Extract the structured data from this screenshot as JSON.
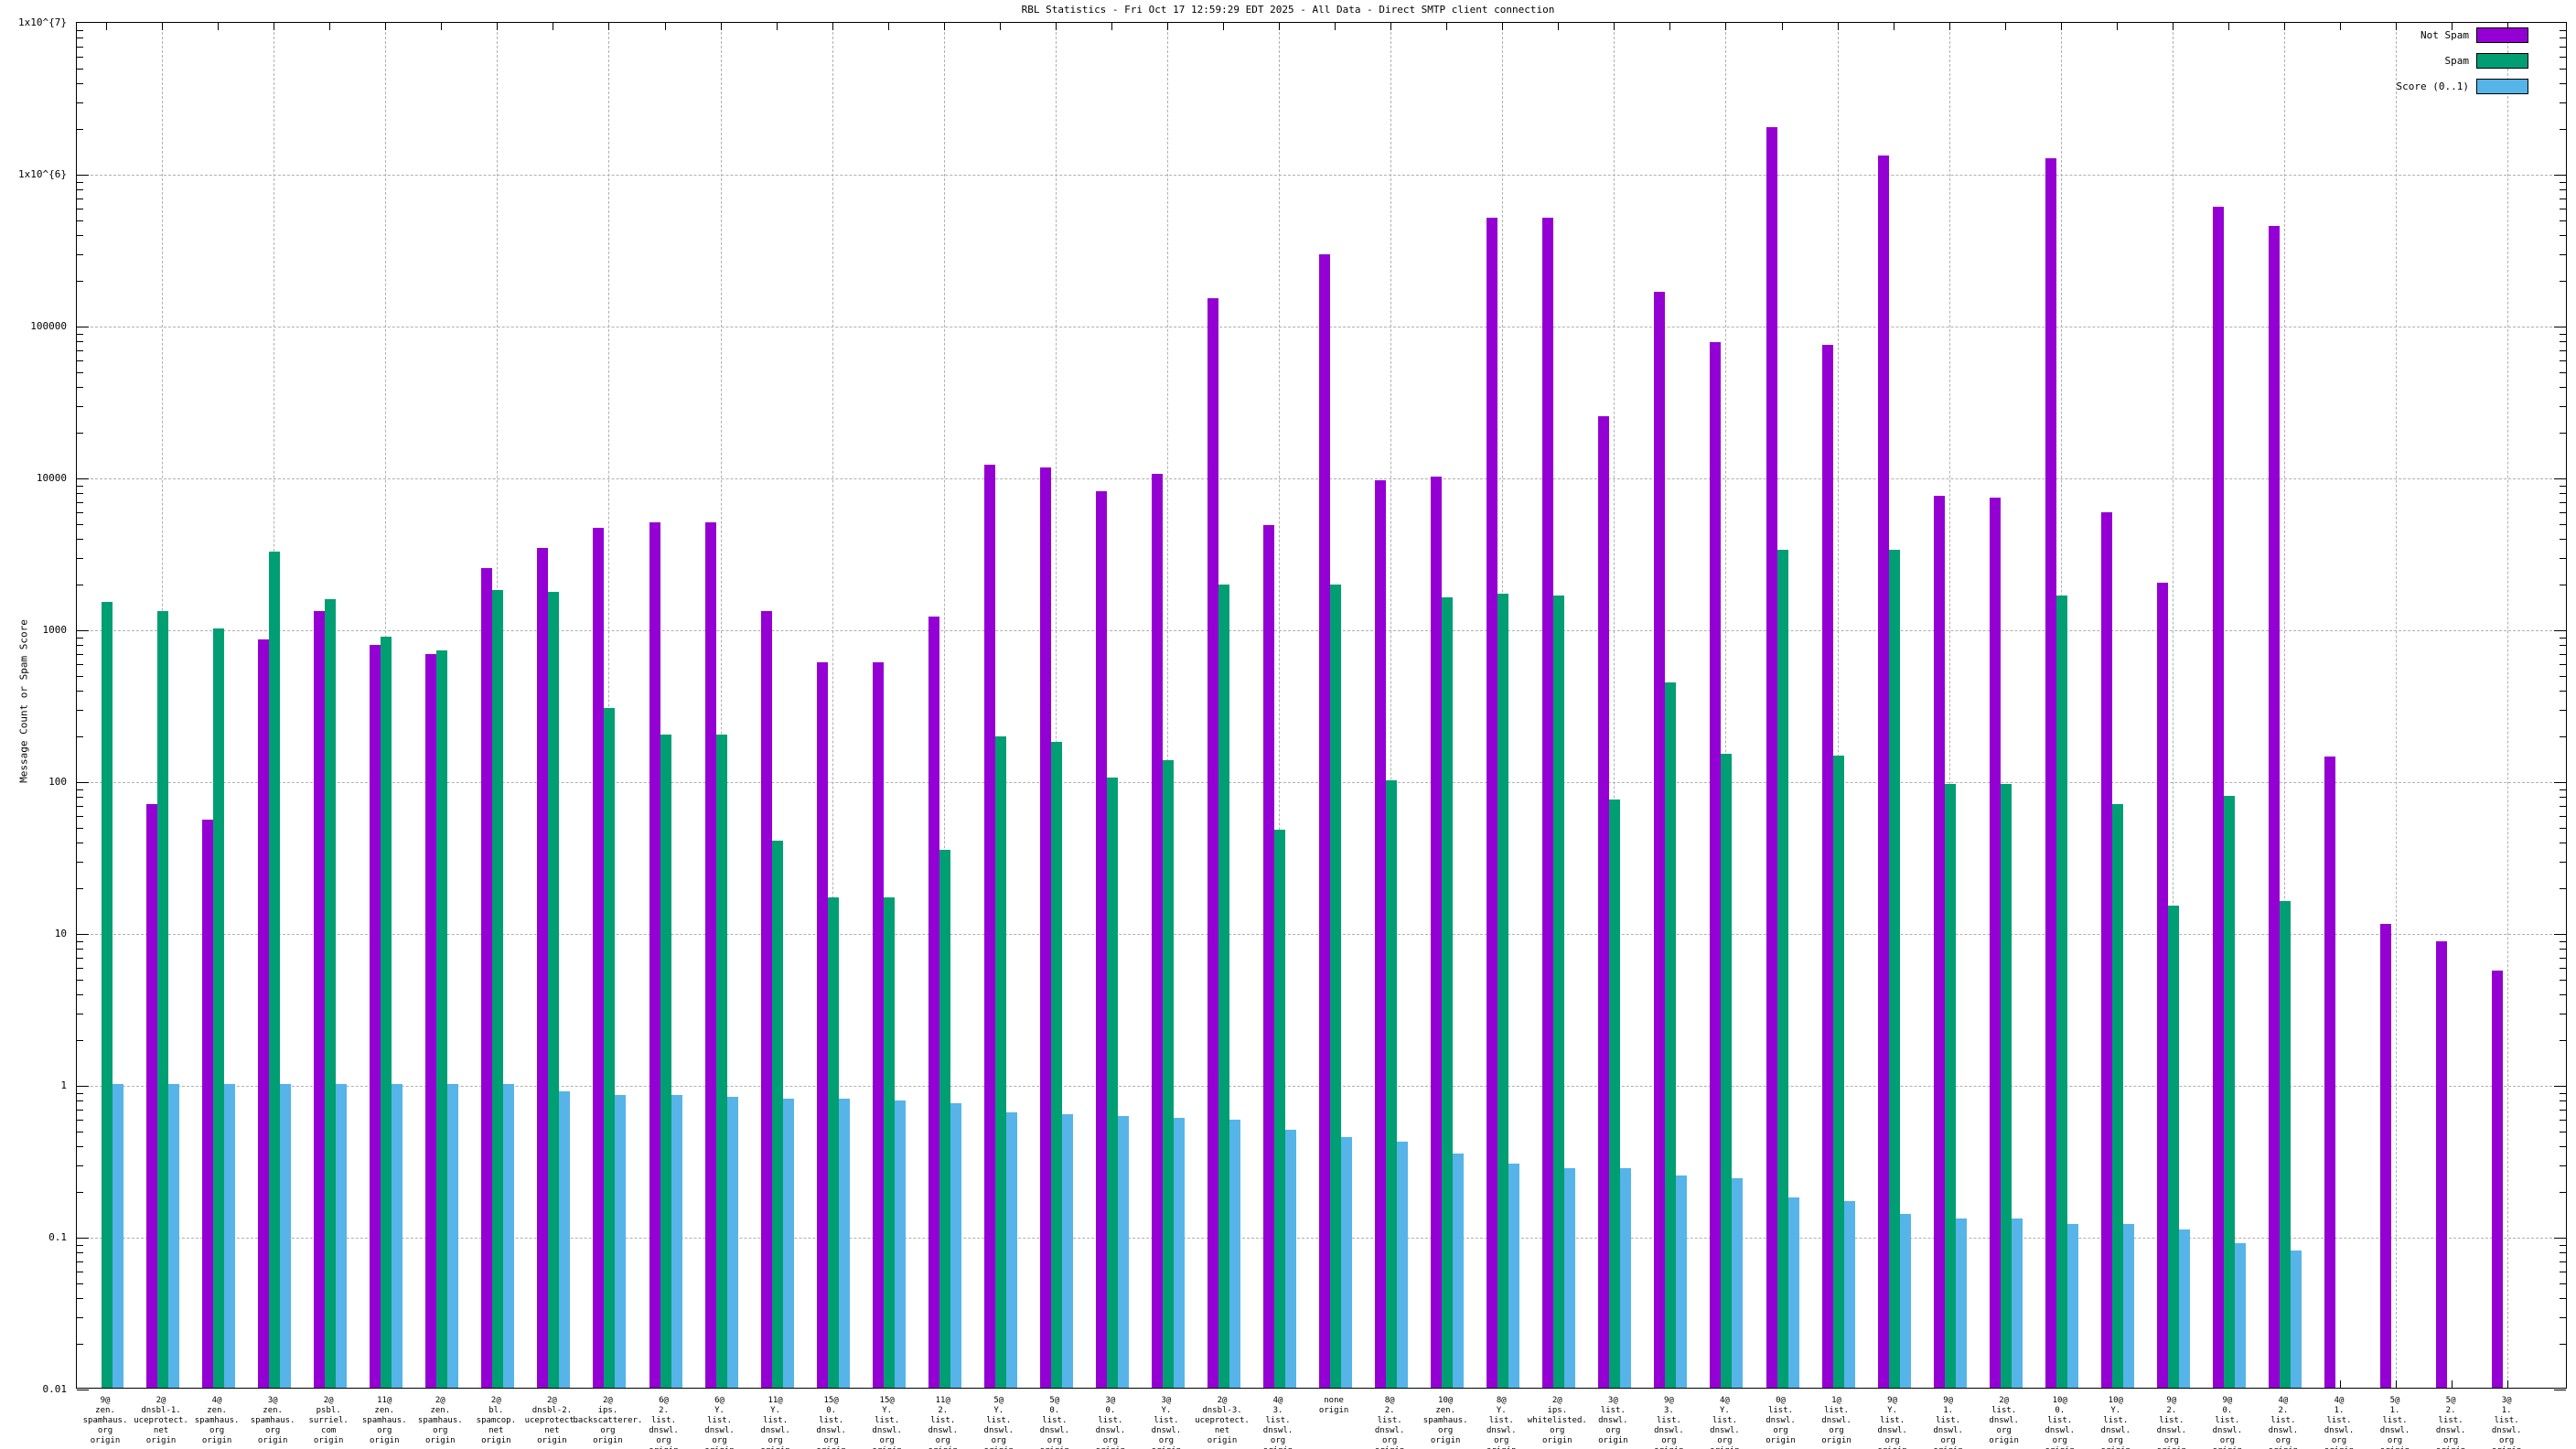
{
  "title": "RBL Statistics - Fri Oct 17 12:59:29 EDT 2025 - All Data - Direct SMTP client connection",
  "y_axis_label": "Message Count or Spam Score",
  "y_tick_labels": [
    "0.01",
    "0.1",
    "1",
    "10",
    "100",
    "1000",
    "10000",
    "100000",
    "1x10^{6}",
    "1x10^{7}"
  ],
  "legend": {
    "not_spam_label": "Not Spam",
    "spam_label": "Spam",
    "score_label": "Score (0..1)"
  },
  "colors": {
    "not_spam": "#9400d3",
    "spam": "#009e73",
    "score": "#56b4e9",
    "grid": "#b0b0b0",
    "border": "#000000"
  },
  "chart_data": {
    "type": "bar",
    "y_scale": "log",
    "ylim": [
      0.01,
      10000000
    ],
    "grid": "on",
    "legend_position": "top-right",
    "title": "RBL Statistics - Fri Oct 17 12:59:29 EDT 2025 - All Data - Direct SMTP client connection",
    "ylabel": "Message Count or Spam Score",
    "series": [
      {
        "name": "Not Spam",
        "color": "#9400d3"
      },
      {
        "name": "Spam",
        "color": "#009e73"
      },
      {
        "name": "Score (0..1)",
        "color": "#56b4e9"
      }
    ],
    "groups": [
      {
        "label_lines": [
          "9@",
          "zen.",
          "spamhaus.",
          "org",
          "origin"
        ],
        "not_spam": null,
        "spam": 1500,
        "score": 1.0
      },
      {
        "label_lines": [
          "2@",
          "dnsbl-1.",
          "uceprotect.",
          "net",
          "origin"
        ],
        "not_spam": 70,
        "spam": 1300,
        "score": 1.0
      },
      {
        "label_lines": [
          "4@",
          "zen.",
          "spamhaus.",
          "org",
          "origin"
        ],
        "not_spam": 55,
        "spam": 1000,
        "score": 1.0
      },
      {
        "label_lines": [
          "3@",
          "zen.",
          "spamhaus.",
          "org",
          "origin"
        ],
        "not_spam": 850,
        "spam": 3200,
        "score": 1.0
      },
      {
        "label_lines": [
          "2@",
          "psbl.",
          "surriel.",
          "com",
          "origin"
        ],
        "not_spam": 1300,
        "spam": 1550,
        "score": 1.0
      },
      {
        "label_lines": [
          "11@",
          "zen.",
          "spamhaus.",
          "org",
          "origin"
        ],
        "not_spam": 780,
        "spam": 880,
        "score": 1.0
      },
      {
        "label_lines": [
          "2@",
          "zen.",
          "spamhaus.",
          "org",
          "origin"
        ],
        "not_spam": 680,
        "spam": 720,
        "score": 1.0
      },
      {
        "label_lines": [
          "2@",
          "bl.",
          "spamcop.",
          "net",
          "origin"
        ],
        "not_spam": 2500,
        "spam": 1800,
        "score": 1.0
      },
      {
        "label_lines": [
          "2@",
          "dnsbl-2.",
          "uceprotect.",
          "net",
          "origin"
        ],
        "not_spam": 3400,
        "spam": 1750,
        "score": 0.9
      },
      {
        "label_lines": [
          "2@",
          "ips.",
          "backscatterer.",
          "org",
          "origin"
        ],
        "not_spam": 4600,
        "spam": 300,
        "score": 0.85
      },
      {
        "label_lines": [
          "6@",
          "2.",
          "list.",
          "dnswl.",
          "org",
          "origin"
        ],
        "not_spam": 5000,
        "spam": 200,
        "score": 0.85
      },
      {
        "label_lines": [
          "6@",
          "Y.",
          "list.",
          "dnswl.",
          "org",
          "origin"
        ],
        "not_spam": 5000,
        "spam": 200,
        "score": 0.82
      },
      {
        "label_lines": [
          "11@",
          "Y.",
          "list.",
          "dnswl.",
          "org",
          "origin"
        ],
        "not_spam": 1300,
        "spam": 40,
        "score": 0.8
      },
      {
        "label_lines": [
          "15@",
          "0.",
          "list.",
          "dnswl.",
          "org",
          "origin"
        ],
        "not_spam": 600,
        "spam": 17,
        "score": 0.8
      },
      {
        "label_lines": [
          "15@",
          "Y.",
          "list.",
          "dnswl.",
          "org",
          "origin"
        ],
        "not_spam": 600,
        "spam": 17,
        "score": 0.78
      },
      {
        "label_lines": [
          "11@",
          "2.",
          "list.",
          "dnswl.",
          "org",
          "origin"
        ],
        "not_spam": 1200,
        "spam": 35,
        "score": 0.75
      },
      {
        "label_lines": [
          "5@",
          "Y.",
          "list.",
          "dnswl.",
          "org",
          "origin"
        ],
        "not_spam": 12000,
        "spam": 195,
        "score": 0.65
      },
      {
        "label_lines": [
          "5@",
          "0.",
          "list.",
          "dnswl.",
          "org",
          "origin"
        ],
        "not_spam": 11500,
        "spam": 180,
        "score": 0.63
      },
      {
        "label_lines": [
          "3@",
          "0.",
          "list.",
          "dnswl.",
          "org",
          "origin"
        ],
        "not_spam": 8000,
        "spam": 105,
        "score": 0.62
      },
      {
        "label_lines": [
          "3@",
          "Y.",
          "list.",
          "dnswl.",
          "org",
          "origin"
        ],
        "not_spam": 10500,
        "spam": 135,
        "score": 0.6
      },
      {
        "label_lines": [
          "2@",
          "dnsbl-3.",
          "uceprotect.",
          "net",
          "origin"
        ],
        "not_spam": 150000,
        "spam": 1950,
        "score": 0.58
      },
      {
        "label_lines": [
          "4@",
          "3.",
          "list.",
          "dnswl.",
          "org",
          "origin"
        ],
        "not_spam": 4800,
        "spam": 47,
        "score": 0.5
      },
      {
        "label_lines": [
          "none",
          "origin"
        ],
        "not_spam": 290000,
        "spam": 1950,
        "score": 0.45
      },
      {
        "label_lines": [
          "8@",
          "2.",
          "list.",
          "dnswl.",
          "org",
          "origin"
        ],
        "not_spam": 9500,
        "spam": 100,
        "score": 0.42
      },
      {
        "label_lines": [
          "10@",
          "zen.",
          "spamhaus.",
          "org",
          "origin"
        ],
        "not_spam": 10000,
        "spam": 1600,
        "score": 0.35
      },
      {
        "label_lines": [
          "8@",
          "Y.",
          "list.",
          "dnswl.",
          "org",
          "origin"
        ],
        "not_spam": 510000,
        "spam": 1700,
        "score": 0.3
      },
      {
        "label_lines": [
          "2@",
          "ips.",
          "whitelisted.",
          "org",
          "origin"
        ],
        "not_spam": 510000,
        "spam": 1650,
        "score": 0.28
      },
      {
        "label_lines": [
          "3@",
          "list.",
          "dnswl.",
          "org",
          "origin"
        ],
        "not_spam": 25000,
        "spam": 75,
        "score": 0.28
      },
      {
        "label_lines": [
          "9@",
          "3.",
          "list.",
          "dnswl.",
          "org",
          "origin"
        ],
        "not_spam": 165000,
        "spam": 440,
        "score": 0.25
      },
      {
        "label_lines": [
          "4@",
          "Y.",
          "list.",
          "dnswl.",
          "org",
          "origin"
        ],
        "not_spam": 77000,
        "spam": 150,
        "score": 0.24
      },
      {
        "label_lines": [
          "0@",
          "list.",
          "dnswl.",
          "org",
          "origin"
        ],
        "not_spam": 2000000,
        "spam": 3300,
        "score": 0.18
      },
      {
        "label_lines": [
          "1@",
          "list.",
          "dnswl.",
          "org",
          "origin"
        ],
        "not_spam": 74000,
        "spam": 145,
        "score": 0.17
      },
      {
        "label_lines": [
          "9@",
          "Y.",
          "list.",
          "dnswl.",
          "org",
          "origin"
        ],
        "not_spam": 1300000,
        "spam": 3300,
        "score": 0.14
      },
      {
        "label_lines": [
          "9@",
          "1.",
          "list.",
          "dnswl.",
          "org",
          "origin"
        ],
        "not_spam": 7500,
        "spam": 95,
        "score": 0.13
      },
      {
        "label_lines": [
          "2@",
          "list.",
          "dnswl.",
          "org",
          "origin"
        ],
        "not_spam": 7300,
        "spam": 95,
        "score": 0.13
      },
      {
        "label_lines": [
          "10@",
          "0.",
          "list.",
          "dnswl.",
          "org",
          "origin"
        ],
        "not_spam": 1250000,
        "spam": 1650,
        "score": 0.12
      },
      {
        "label_lines": [
          "10@",
          "Y.",
          "list.",
          "dnswl.",
          "org",
          "origin"
        ],
        "not_spam": 5800,
        "spam": 70,
        "score": 0.12
      },
      {
        "label_lines": [
          "9@",
          "2.",
          "list.",
          "dnswl.",
          "org",
          "origin"
        ],
        "not_spam": 2000,
        "spam": 15,
        "score": 0.11
      },
      {
        "label_lines": [
          "9@",
          "0.",
          "list.",
          "dnswl.",
          "org",
          "origin"
        ],
        "not_spam": 600000,
        "spam": 79,
        "score": 0.09
      },
      {
        "label_lines": [
          "4@",
          "2.",
          "list.",
          "dnswl.",
          "org",
          "origin"
        ],
        "not_spam": 450000,
        "spam": 16,
        "score": 0.08
      },
      {
        "label_lines": [
          "4@",
          "1.",
          "list.",
          "dnswl.",
          "org",
          "origin"
        ],
        "not_spam": 143,
        "spam": null,
        "score": null
      },
      {
        "label_lines": [
          "5@",
          "1.",
          "list.",
          "dnswl.",
          "org",
          "origin"
        ],
        "not_spam": 11.3,
        "spam": null,
        "score": null
      },
      {
        "label_lines": [
          "5@",
          "2.",
          "list.",
          "dnswl.",
          "org",
          "origin"
        ],
        "not_spam": 8.7,
        "spam": null,
        "score": null
      },
      {
        "label_lines": [
          "3@",
          "1.",
          "list.",
          "dnswl.",
          "org",
          "origin"
        ],
        "not_spam": 5.6,
        "spam": null,
        "score": null
      }
    ]
  }
}
